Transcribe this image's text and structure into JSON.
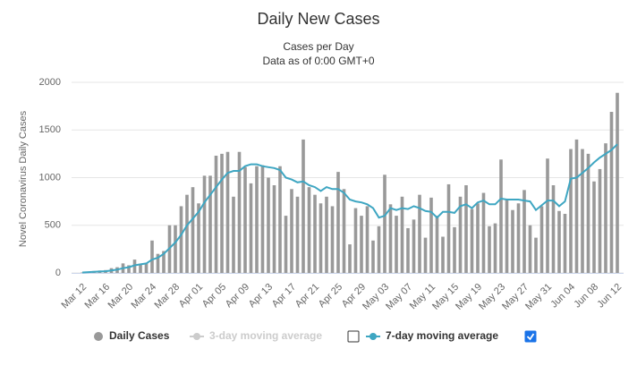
{
  "chart_data": {
    "type": "bar",
    "title": "Daily New Cases",
    "subtitle": [
      "Cases per Day",
      "Data as of 0:00 GMT+0"
    ],
    "y_label": "Novel Coronavirus Daily Cases",
    "categories": [
      "Mar 12",
      null,
      null,
      null,
      "Mar 16",
      null,
      null,
      null,
      "Mar 20",
      null,
      null,
      null,
      "Mar 24",
      null,
      null,
      null,
      "Mar 28",
      null,
      null,
      null,
      "Apr 01",
      null,
      null,
      null,
      "Apr 05",
      null,
      null,
      null,
      "Apr 09",
      null,
      null,
      null,
      "Apr 13",
      null,
      null,
      null,
      "Apr 17",
      null,
      null,
      null,
      "Apr 21",
      null,
      null,
      null,
      "Apr 25",
      null,
      null,
      null,
      "Apr 29",
      null,
      null,
      null,
      "May 03",
      null,
      null,
      null,
      "May 07",
      null,
      null,
      null,
      "May 11",
      null,
      null,
      null,
      "May 15",
      null,
      null,
      null,
      "May 19",
      null,
      null,
      null,
      "May 23",
      null,
      null,
      null,
      "May 27",
      null,
      null,
      null,
      "May 31",
      null,
      null,
      null,
      "Jun 04",
      null,
      null,
      null,
      "Jun 08",
      null,
      null,
      null,
      "Jun 12"
    ],
    "series": [
      {
        "name": "Daily Cases",
        "type": "bar",
        "color": "#999999",
        "values": [
          5,
          10,
          20,
          25,
          30,
          50,
          60,
          100,
          80,
          140,
          90,
          100,
          340,
          200,
          230,
          500,
          500,
          700,
          820,
          900,
          730,
          1020,
          1020,
          1230,
          1250,
          1270,
          800,
          1270,
          1110,
          940,
          1120,
          1130,
          1000,
          920,
          1120,
          600,
          880,
          800,
          1400,
          900,
          820,
          730,
          800,
          700,
          1060,
          880,
          300,
          680,
          600,
          700,
          340,
          490,
          1030,
          720,
          600,
          800,
          470,
          560,
          820,
          370,
          790,
          600,
          380,
          930,
          480,
          800,
          920,
          670,
          730,
          840,
          490,
          520,
          1190,
          770,
          660,
          730,
          870,
          500,
          370,
          700,
          1200,
          920,
          650,
          620,
          1300,
          1400,
          1300,
          1250,
          960,
          1090,
          1360,
          1690,
          1890
        ]
      },
      {
        "name": "7-day moving average",
        "type": "line",
        "color": "#3ea6c2",
        "checked": true,
        "values": [
          5,
          8,
          12,
          15,
          18,
          25,
          35,
          50,
          60,
          80,
          90,
          100,
          140,
          160,
          200,
          260,
          320,
          400,
          500,
          570,
          640,
          740,
          820,
          900,
          980,
          1050,
          1070,
          1070,
          1120,
          1140,
          1140,
          1120,
          1110,
          1100,
          1080,
          1000,
          980,
          950,
          960,
          920,
          900,
          860,
          900,
          880,
          880,
          840,
          770,
          750,
          740,
          720,
          680,
          580,
          600,
          680,
          660,
          680,
          670,
          700,
          680,
          650,
          640,
          580,
          640,
          640,
          630,
          700,
          720,
          680,
          740,
          760,
          720,
          720,
          780,
          770,
          770,
          770,
          760,
          750,
          660,
          710,
          760,
          760,
          700,
          750,
          990,
          1000,
          1050,
          1100,
          1160,
          1210,
          1250,
          1290,
          1350
        ]
      }
    ],
    "hidden_series": [
      {
        "name": "3-day moving average",
        "color": "#cccccc",
        "checked": false
      }
    ],
    "ylim": [
      0,
      2000
    ],
    "yticks": [
      0,
      500,
      1000,
      1500,
      2000
    ],
    "grid": true
  }
}
